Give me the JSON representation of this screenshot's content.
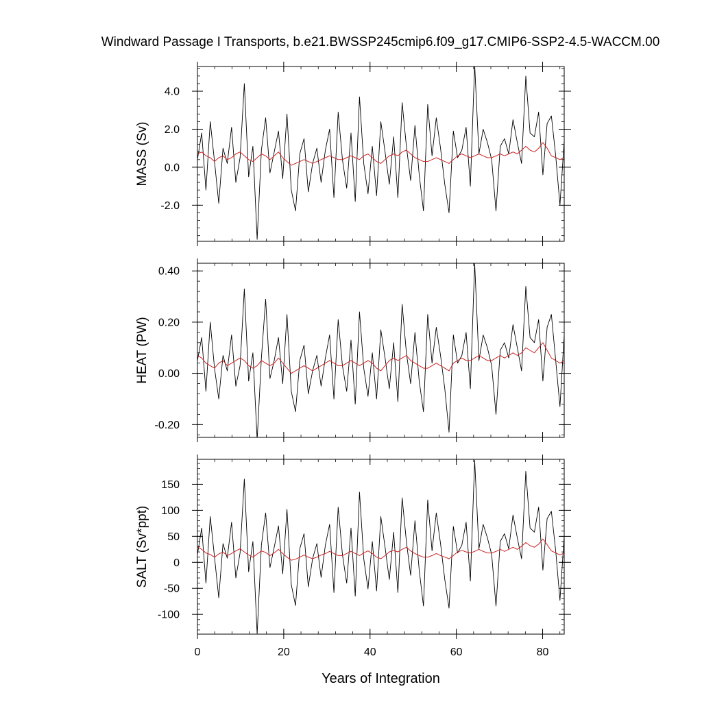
{
  "title": "Windward Passage I Transports, b.e21.BWSSP245cmip6.f09_g17.CMIP6-SSP2-4.5-WACCM.00",
  "chart_data": [
    {
      "type": "line",
      "ylabel": "MASS (Sv)",
      "xlabel": "",
      "xlim": [
        0,
        85
      ],
      "ylim": [
        -3.9,
        5.3
      ],
      "x_ticks": [
        0,
        20,
        40,
        60,
        80
      ],
      "y_ticks": [
        -2.0,
        0.0,
        2.0,
        4.0
      ],
      "y_tick_labels": [
        "-2.0",
        "0.0",
        "2.0",
        "4.0"
      ],
      "series": [
        {
          "color": "#000000",
          "values": [
            0.4,
            1.8,
            -1.2,
            2.4,
            0.3,
            -1.9,
            1.0,
            0.2,
            2.1,
            -0.8,
            0.5,
            4.4,
            -0.5,
            1.1,
            -3.8,
            0.9,
            2.6,
            -0.3,
            0.8,
            1.9,
            -0.6,
            2.8,
            -1.2,
            -2.3,
            0.7,
            1.5,
            -1.3,
            0.2,
            1.0,
            -0.8,
            0.9,
            2.0,
            -1.6,
            2.9,
            0.4,
            -1.1,
            1.8,
            -1.8,
            3.7,
            0.2,
            -1.4,
            1.1,
            -1.5,
            2.4,
            0.8,
            -0.9,
            1.6,
            -1.6,
            3.4,
            1.1,
            -0.7,
            2.2,
            -0.4,
            -2.3,
            3.3,
            0.6,
            2.6,
            1.0,
            -0.9,
            -2.4,
            1.9,
            0.5,
            0.9,
            2.1,
            -1.0,
            5.4,
            0.7,
            2.0,
            1.3,
            0.4,
            -2.3,
            1.1,
            1.5,
            0.7,
            2.5,
            1.3,
            0.2,
            4.8,
            1.8,
            1.6,
            2.9,
            -0.4,
            2.3,
            2.7,
            0.6,
            -2.0,
            1.4
          ]
        },
        {
          "color": "#cc2222",
          "values": [
            0.7,
            0.8,
            0.6,
            0.5,
            0.3,
            0.5,
            0.6,
            0.4,
            0.5,
            0.7,
            0.8,
            0.6,
            0.4,
            0.3,
            0.5,
            0.7,
            0.6,
            0.4,
            0.6,
            0.8,
            0.5,
            0.3,
            0.1,
            0.2,
            0.3,
            0.4,
            0.3,
            0.2,
            0.3,
            0.4,
            0.5,
            0.6,
            0.5,
            0.4,
            0.4,
            0.5,
            0.6,
            0.5,
            0.4,
            0.6,
            0.7,
            0.5,
            0.3,
            0.2,
            0.4,
            0.6,
            0.7,
            0.6,
            0.8,
            0.9,
            0.7,
            0.5,
            0.4,
            0.3,
            0.3,
            0.4,
            0.5,
            0.4,
            0.3,
            0.2,
            0.4,
            0.6,
            0.7,
            0.6,
            0.5,
            0.6,
            0.7,
            0.6,
            0.5,
            0.5,
            0.6,
            0.7,
            0.6,
            0.7,
            0.8,
            0.7,
            0.9,
            1.1,
            0.9,
            0.8,
            1.0,
            1.3,
            1.0,
            0.6,
            0.5,
            0.4,
            0.5
          ]
        }
      ]
    },
    {
      "type": "line",
      "ylabel": "HEAT (PW)",
      "xlabel": "",
      "xlim": [
        0,
        85
      ],
      "ylim": [
        -0.25,
        0.43
      ],
      "x_ticks": [
        0,
        20,
        40,
        60,
        80
      ],
      "y_ticks": [
        -0.2,
        0.0,
        0.2,
        0.4
      ],
      "y_tick_labels": [
        "-0.20",
        "0.00",
        "0.20",
        "0.40"
      ],
      "series": [
        {
          "color": "#000000",
          "values": [
            0.05,
            0.14,
            -0.07,
            0.2,
            0.02,
            -0.1,
            0.07,
            0.01,
            0.15,
            -0.05,
            0.03,
            0.33,
            -0.03,
            0.08,
            -0.26,
            0.06,
            0.29,
            -0.02,
            0.05,
            0.14,
            -0.04,
            0.23,
            -0.07,
            -0.15,
            0.05,
            0.11,
            -0.08,
            0.01,
            0.07,
            -0.05,
            0.06,
            0.15,
            -0.1,
            0.21,
            0.03,
            -0.07,
            0.13,
            -0.12,
            0.24,
            0.02,
            -0.09,
            0.08,
            -0.1,
            0.17,
            0.06,
            -0.06,
            0.12,
            -0.11,
            0.27,
            0.08,
            -0.04,
            0.16,
            -0.03,
            -0.15,
            0.23,
            0.04,
            0.18,
            0.07,
            -0.06,
            -0.23,
            0.15,
            0.04,
            0.07,
            0.16,
            -0.06,
            0.43,
            0.05,
            0.15,
            0.1,
            0.03,
            -0.16,
            0.09,
            0.12,
            0.06,
            0.19,
            0.1,
            0.01,
            0.34,
            0.14,
            0.12,
            0.21,
            -0.03,
            0.18,
            0.23,
            0.05,
            -0.13,
            0.15
          ]
        },
        {
          "color": "#cc2222",
          "values": [
            0.07,
            0.06,
            0.04,
            0.03,
            0.02,
            0.04,
            0.05,
            0.03,
            0.04,
            0.05,
            0.06,
            0.05,
            0.03,
            0.02,
            0.03,
            0.05,
            0.04,
            0.03,
            0.04,
            0.06,
            0.04,
            0.02,
            0.0,
            0.01,
            0.02,
            0.03,
            0.02,
            0.01,
            0.02,
            0.03,
            0.04,
            0.05,
            0.04,
            0.03,
            0.03,
            0.04,
            0.05,
            0.04,
            0.03,
            0.04,
            0.05,
            0.04,
            0.02,
            0.01,
            0.03,
            0.05,
            0.06,
            0.05,
            0.06,
            0.07,
            0.05,
            0.04,
            0.03,
            0.02,
            0.02,
            0.03,
            0.04,
            0.03,
            0.02,
            0.01,
            0.04,
            0.05,
            0.06,
            0.05,
            0.05,
            0.06,
            0.07,
            0.06,
            0.05,
            0.05,
            0.06,
            0.07,
            0.06,
            0.07,
            0.08,
            0.07,
            0.08,
            0.1,
            0.09,
            0.08,
            0.1,
            0.12,
            0.09,
            0.06,
            0.05,
            0.04,
            0.05
          ]
        }
      ]
    },
    {
      "type": "line",
      "ylabel": "SALT (Sv*ppt)",
      "xlabel": "Years of Integration",
      "xlim": [
        0,
        85
      ],
      "ylim": [
        -138,
        198
      ],
      "x_ticks": [
        0,
        20,
        40,
        60,
        80
      ],
      "x_tick_labels": [
        "0",
        "20",
        "40",
        "60",
        "80"
      ],
      "y_ticks": [
        -100,
        -50,
        0,
        50,
        100,
        150
      ],
      "y_tick_labels": [
        "-100",
        "-50",
        "0",
        "50",
        "100",
        "150"
      ],
      "series": [
        {
          "color": "#000000",
          "values": [
            15,
            66,
            -40,
            88,
            10,
            -68,
            36,
            8,
            77,
            -30,
            18,
            160,
            -18,
            40,
            -138,
            33,
            95,
            -10,
            29,
            70,
            -22,
            102,
            -43,
            -83,
            26,
            55,
            -47,
            7,
            36,
            -29,
            33,
            73,
            -58,
            106,
            15,
            -40,
            66,
            -65,
            135,
            7,
            -51,
            40,
            -55,
            88,
            29,
            -33,
            58,
            -58,
            124,
            40,
            -25,
            80,
            -15,
            -84,
            120,
            22,
            95,
            36,
            -33,
            -88,
            69,
            18,
            33,
            77,
            -36,
            196,
            26,
            73,
            47,
            15,
            -84,
            40,
            55,
            26,
            91,
            47,
            7,
            175,
            66,
            58,
            106,
            -15,
            84,
            98,
            22,
            -73,
            51
          ]
        },
        {
          "color": "#cc2222",
          "values": [
            30,
            25,
            18,
            15,
            10,
            16,
            20,
            13,
            17,
            22,
            26,
            20,
            14,
            10,
            16,
            22,
            19,
            13,
            18,
            25,
            17,
            10,
            4,
            6,
            10,
            14,
            10,
            7,
            10,
            14,
            17,
            21,
            17,
            13,
            13,
            17,
            21,
            17,
            13,
            18,
            22,
            17,
            10,
            7,
            13,
            20,
            23,
            20,
            25,
            29,
            22,
            17,
            13,
            10,
            10,
            13,
            17,
            13,
            10,
            7,
            13,
            20,
            23,
            20,
            18,
            21,
            25,
            21,
            18,
            18,
            21,
            25,
            21,
            25,
            29,
            25,
            31,
            38,
            32,
            29,
            35,
            45,
            34,
            22,
            18,
            14,
            18
          ]
        }
      ]
    }
  ]
}
